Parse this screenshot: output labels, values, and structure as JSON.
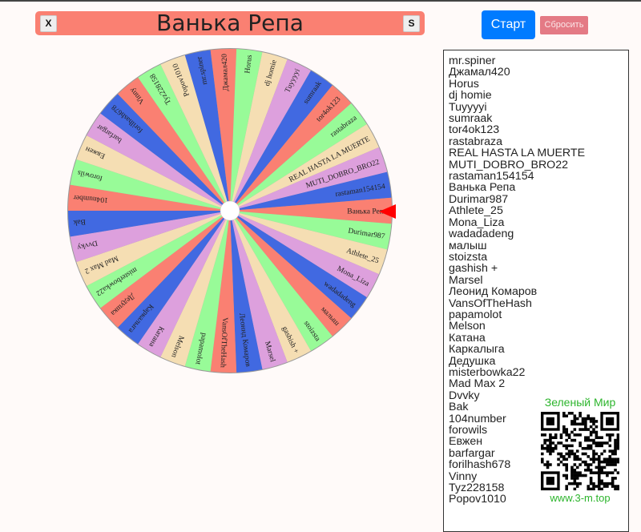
{
  "header": {
    "title": "Ванька Репа",
    "close_label": "X",
    "s_label": "S"
  },
  "controls": {
    "start_label": "Старт",
    "reset_label": "Сбросить"
  },
  "colors": {
    "segments": [
      "#4169e1",
      "#fa8072",
      "#98fb98",
      "#f5deb3",
      "#dda0dd"
    ],
    "pointer": "#ff0000",
    "start": "#007bff",
    "reset": "#e47a85",
    "title_bar": "#fa8072"
  },
  "wheel": {
    "selected": "Ванька Репа"
  },
  "participants": [
    "mr.spiner",
    "Джамал420",
    "Horus",
    "dj homie",
    "Tuyyyyi",
    "sumraak",
    "tor4ok123",
    "rastabraza",
    "REAL HASTA LA MUERTE",
    "MUTI_DOBRO_BRO22",
    "rastaman154154",
    "Ванька Репа",
    "Durimar987",
    "Athlete_25",
    "Mona_Liza",
    "wadadadeng",
    "малыш",
    "stoizsta",
    "gashish +",
    "Marsel",
    "Леонид Комаров",
    "VansOfTheHash",
    "papamolot",
    "Melson",
    "Катана",
    "Каркалыга",
    "Дедушка",
    "misterbowka22",
    "Mad Max 2",
    "Dvvky",
    "Bak",
    "104number",
    "forowils",
    "Евжен",
    "barfargar",
    "forilhash678",
    "Vinny",
    "Tyz228158",
    "Popov1010"
  ],
  "promo": {
    "brand": "Зеленый Мир",
    "url": "www.3-m.top"
  }
}
